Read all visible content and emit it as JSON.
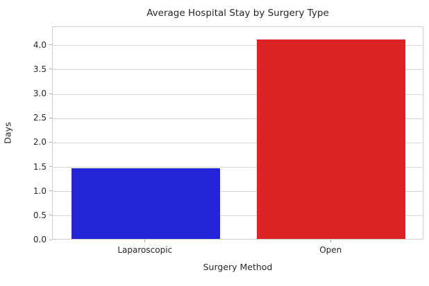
{
  "chart_data": {
    "type": "bar",
    "title": "Average Hospital Stay by Surgery Type",
    "xlabel": "Surgery Method",
    "ylabel": "Days",
    "categories": [
      "Laparoscopic",
      "Open"
    ],
    "values": [
      1.45,
      4.1
    ],
    "bar_colors": [
      "#2424d9",
      "#dd2424"
    ],
    "bar_width_fraction": 0.8,
    "ylim": [
      0,
      4.38
    ],
    "yticks": [
      0.0,
      0.5,
      1.0,
      1.5,
      2.0,
      2.5,
      3.0,
      3.5,
      4.0
    ],
    "ytick_labels": [
      "0.0",
      "0.5",
      "1.0",
      "1.5",
      "2.0",
      "2.5",
      "3.0",
      "3.5",
      "4.0"
    ],
    "grid": "horizontal",
    "legend": "none"
  },
  "colors": {
    "background": "#ffffff",
    "text": "#262626",
    "gridline": "#d8d8d8",
    "spine": "#cccccc",
    "tick": "#aaaaaa"
  }
}
